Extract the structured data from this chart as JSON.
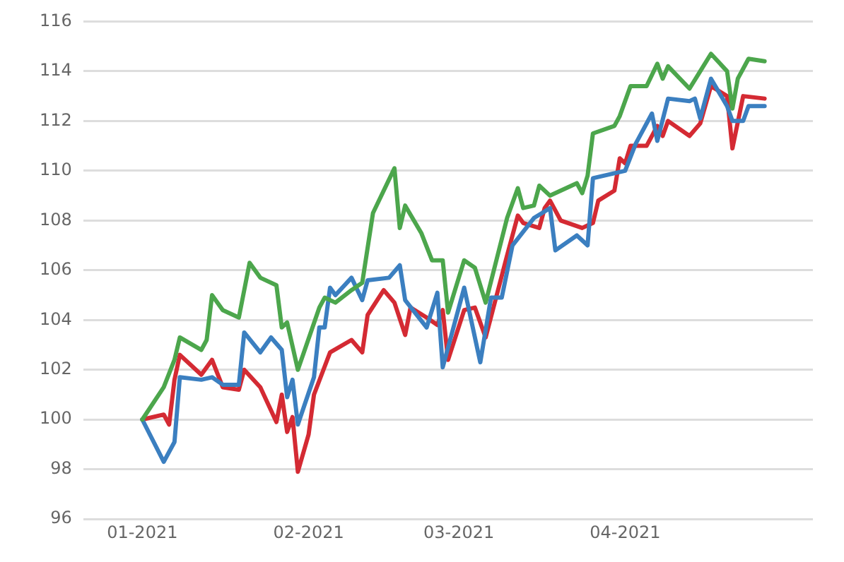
{
  "chart_data": {
    "type": "line",
    "xlim": [
      "2020-12-21",
      "2021-05-06"
    ],
    "xticks": [
      {
        "value": "2021-01",
        "label": "01-2021"
      },
      {
        "value": "2021-02",
        "label": "02-2021"
      },
      {
        "value": "2021-03",
        "label": "03-2021"
      },
      {
        "value": "2021-04",
        "label": "04-2021"
      }
    ],
    "ylim": [
      96,
      116
    ],
    "yticks": [
      96,
      98,
      100,
      102,
      104,
      106,
      108,
      110,
      112,
      114,
      116
    ],
    "grid": "y",
    "legend": false,
    "marker": "none",
    "line_style": "solid",
    "series": [
      {
        "color": "#4ca64c",
        "x": [
          "2021-01-01",
          "2021-01-05",
          "2021-01-07",
          "2021-01-08",
          "2021-01-12",
          "2021-01-13",
          "2021-01-14",
          "2021-01-16",
          "2021-01-19",
          "2021-01-21",
          "2021-01-23",
          "2021-01-26",
          "2021-01-27",
          "2021-01-28",
          "2021-01-30",
          "2021-02-03",
          "2021-02-04",
          "2021-02-06",
          "2021-02-09",
          "2021-02-11",
          "2021-02-13",
          "2021-02-17",
          "2021-02-18",
          "2021-02-19",
          "2021-02-22",
          "2021-02-24",
          "2021-02-26",
          "2021-02-27",
          "2021-03-02",
          "2021-03-04",
          "2021-03-06",
          "2021-03-10",
          "2021-03-12",
          "2021-03-13",
          "2021-03-15",
          "2021-03-16",
          "2021-03-18",
          "2021-03-23",
          "2021-03-24",
          "2021-03-25",
          "2021-03-26",
          "2021-03-30",
          "2021-03-31",
          "2021-04-02",
          "2021-04-05",
          "2021-04-07",
          "2021-04-08",
          "2021-04-09",
          "2021-04-13",
          "2021-04-15",
          "2021-04-17",
          "2021-04-20",
          "2021-04-21",
          "2021-04-22",
          "2021-04-24",
          "2021-04-27"
        ],
        "values": [
          100.0,
          101.3,
          102.4,
          103.3,
          102.8,
          103.2,
          105.0,
          104.4,
          104.1,
          106.3,
          105.7,
          105.4,
          103.7,
          103.9,
          102.0,
          104.5,
          104.9,
          104.7,
          105.2,
          105.5,
          108.3,
          110.1,
          107.7,
          108.6,
          107.5,
          106.4,
          106.4,
          104.3,
          106.4,
          106.1,
          104.7,
          108.1,
          109.3,
          108.5,
          108.6,
          109.4,
          109.0,
          109.5,
          109.1,
          109.8,
          111.5,
          111.8,
          112.2,
          113.4,
          113.4,
          114.3,
          113.7,
          114.2,
          113.3,
          114.0,
          114.7,
          114.0,
          112.5,
          113.7,
          114.5,
          114.4
        ]
      },
      {
        "color": "#3b7fc0",
        "x": [
          "2021-01-01",
          "2021-01-05",
          "2021-01-07",
          "2021-01-08",
          "2021-01-12",
          "2021-01-14",
          "2021-01-16",
          "2021-01-19",
          "2021-01-20",
          "2021-01-23",
          "2021-01-25",
          "2021-01-27",
          "2021-01-28",
          "2021-01-29",
          "2021-01-30",
          "2021-02-02",
          "2021-02-03",
          "2021-02-04",
          "2021-02-05",
          "2021-02-06",
          "2021-02-09",
          "2021-02-11",
          "2021-02-12",
          "2021-02-16",
          "2021-02-18",
          "2021-02-19",
          "2021-02-23",
          "2021-02-25",
          "2021-02-26",
          "2021-03-02",
          "2021-03-05",
          "2021-03-07",
          "2021-03-09",
          "2021-03-11",
          "2021-03-15",
          "2021-03-18",
          "2021-03-19",
          "2021-03-23",
          "2021-03-25",
          "2021-03-26",
          "2021-04-01",
          "2021-04-03",
          "2021-04-06",
          "2021-04-07",
          "2021-04-09",
          "2021-04-13",
          "2021-04-14",
          "2021-04-15",
          "2021-04-17",
          "2021-04-20",
          "2021-04-21",
          "2021-04-23",
          "2021-04-24",
          "2021-04-27"
        ],
        "values": [
          100.0,
          98.3,
          99.1,
          101.7,
          101.6,
          101.7,
          101.4,
          101.4,
          103.5,
          102.7,
          103.3,
          102.8,
          100.9,
          101.6,
          99.8,
          101.7,
          103.7,
          103.7,
          105.3,
          105.0,
          105.7,
          104.8,
          105.6,
          105.7,
          106.2,
          104.8,
          103.7,
          105.1,
          102.1,
          105.3,
          102.3,
          104.9,
          104.9,
          107.0,
          108.1,
          108.5,
          106.8,
          107.4,
          107.0,
          109.7,
          110.0,
          111.1,
          112.3,
          111.2,
          112.9,
          112.8,
          112.9,
          112.1,
          113.7,
          112.6,
          112.0,
          112.0,
          112.6,
          112.6
        ]
      },
      {
        "color": "#d42a33",
        "x": [
          "2021-01-01",
          "2021-01-05",
          "2021-01-06",
          "2021-01-07",
          "2021-01-08",
          "2021-01-12",
          "2021-01-14",
          "2021-01-16",
          "2021-01-19",
          "2021-01-20",
          "2021-01-23",
          "2021-01-26",
          "2021-01-27",
          "2021-01-28",
          "2021-01-29",
          "2021-01-30",
          "2021-02-01",
          "2021-02-02",
          "2021-02-05",
          "2021-02-09",
          "2021-02-11",
          "2021-02-12",
          "2021-02-15",
          "2021-02-17",
          "2021-02-19",
          "2021-02-20",
          "2021-02-23",
          "2021-02-25",
          "2021-02-26",
          "2021-02-27",
          "2021-03-02",
          "2021-03-04",
          "2021-03-06",
          "2021-03-10",
          "2021-03-12",
          "2021-03-13",
          "2021-03-16",
          "2021-03-17",
          "2021-03-18",
          "2021-03-20",
          "2021-03-24",
          "2021-03-26",
          "2021-03-27",
          "2021-03-30",
          "2021-03-31",
          "2021-04-01",
          "2021-04-02",
          "2021-04-05",
          "2021-04-07",
          "2021-04-08",
          "2021-04-09",
          "2021-04-13",
          "2021-04-15",
          "2021-04-17",
          "2021-04-20",
          "2021-04-21",
          "2021-04-23",
          "2021-04-27"
        ],
        "values": [
          100.0,
          100.2,
          99.8,
          101.6,
          102.6,
          101.8,
          102.4,
          101.3,
          101.2,
          102.0,
          101.3,
          99.9,
          101.0,
          99.5,
          100.1,
          97.9,
          99.4,
          101.0,
          102.7,
          103.2,
          102.7,
          104.2,
          105.2,
          104.7,
          103.4,
          104.5,
          104.1,
          103.8,
          104.4,
          102.4,
          104.4,
          104.5,
          103.3,
          106.6,
          108.2,
          107.9,
          107.7,
          108.5,
          108.8,
          108.0,
          107.7,
          107.9,
          108.8,
          109.2,
          110.5,
          110.3,
          111.0,
          111.0,
          111.8,
          111.4,
          112.0,
          111.4,
          111.9,
          113.4,
          113.0,
          110.9,
          113.0,
          112.9
        ]
      }
    ]
  }
}
